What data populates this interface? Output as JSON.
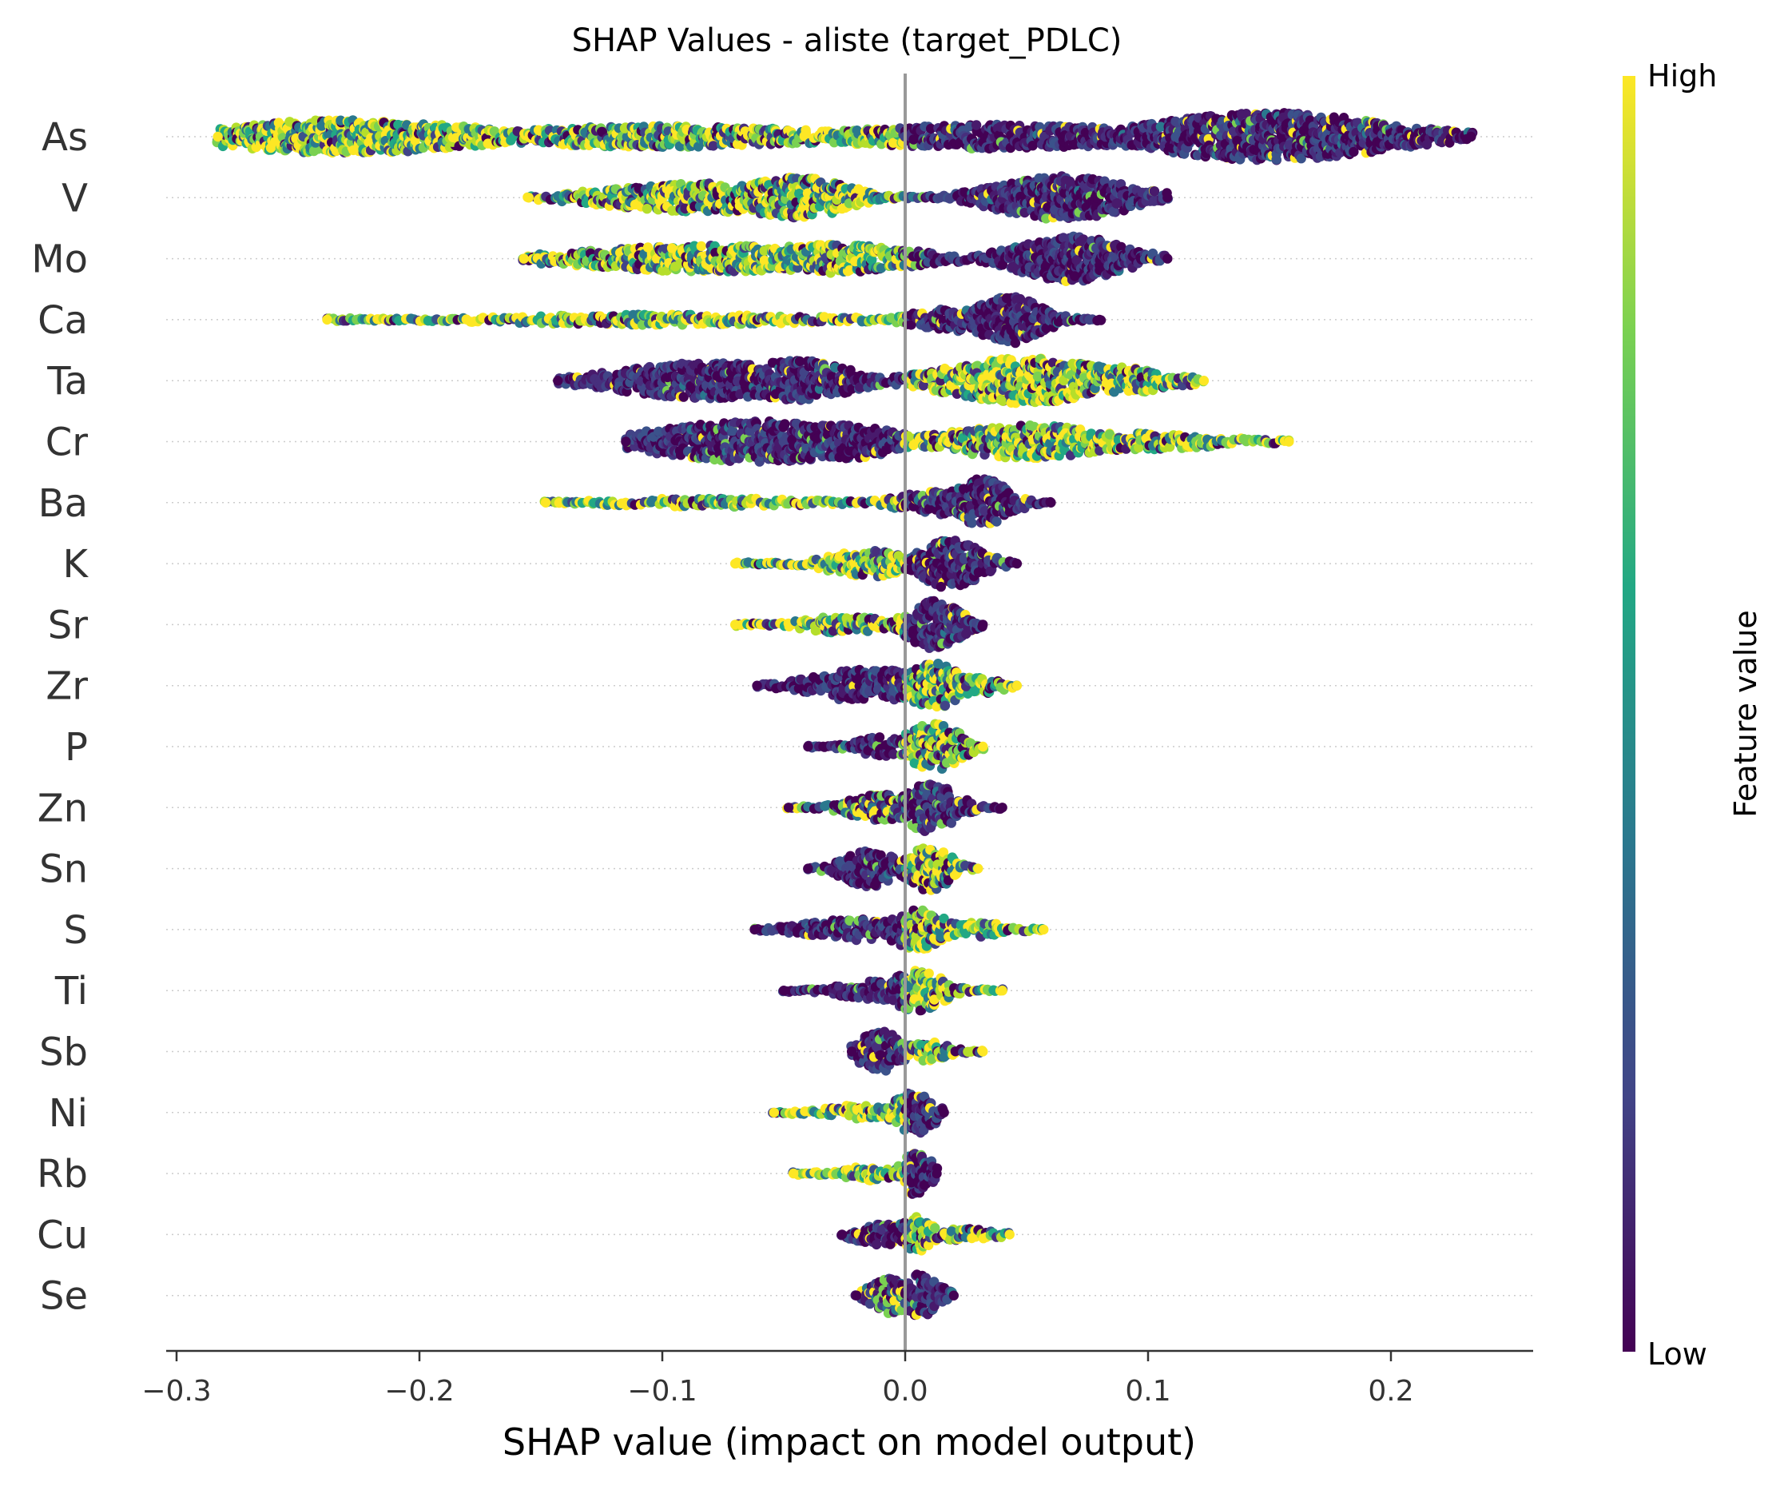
{
  "chart_data": {
    "type": "scatter",
    "subtype": "shap-beeswarm",
    "title": "SHAP Values - aliste (target_PDLC)",
    "xlabel": "SHAP value (impact on model output)",
    "ylabel": "",
    "xlim": [
      -0.305,
      0.258
    ],
    "xticks": [
      -0.3,
      -0.2,
      -0.1,
      0.0,
      0.1,
      0.2
    ],
    "xtick_labels": [
      "−0.3",
      "−0.2",
      "−0.1",
      "0.0",
      "0.1",
      "0.2"
    ],
    "zero_line": 0.0,
    "grid": false,
    "colorbar": {
      "label": "Feature value",
      "high_label": "High",
      "low_label": "Low",
      "colormap": "viridis",
      "colors": [
        "#440154",
        "#414487",
        "#2a788e",
        "#22a884",
        "#7ad151",
        "#fde725"
      ]
    },
    "features": [
      {
        "name": "As",
        "min": -0.283,
        "max": 0.233,
        "neg_color": "high",
        "pos_color": "low",
        "lobes": [
          {
            "c": -0.23,
            "w": 0.05,
            "h": 0.7
          },
          {
            "c": -0.1,
            "w": 0.06,
            "h": 0.45
          },
          {
            "c": 0.04,
            "w": 0.06,
            "h": 0.5
          },
          {
            "c": 0.15,
            "w": 0.045,
            "h": 1.0
          }
        ]
      },
      {
        "name": "V",
        "min": -0.155,
        "max": 0.108,
        "neg_color": "high",
        "pos_color": "low",
        "lobes": [
          {
            "c": -0.08,
            "w": 0.04,
            "h": 0.6
          },
          {
            "c": -0.045,
            "w": 0.02,
            "h": 0.85
          },
          {
            "c": 0.065,
            "w": 0.025,
            "h": 0.9
          }
        ]
      },
      {
        "name": "Mo",
        "min": -0.157,
        "max": 0.108,
        "neg_color": "high",
        "pos_color": "low",
        "lobes": [
          {
            "c": -0.08,
            "w": 0.05,
            "h": 0.55
          },
          {
            "c": -0.03,
            "w": 0.03,
            "h": 0.6
          },
          {
            "c": 0.068,
            "w": 0.02,
            "h": 0.95
          }
        ]
      },
      {
        "name": "Ca",
        "min": -0.238,
        "max": 0.08,
        "neg_color": "high",
        "pos_color": "low",
        "lobes": [
          {
            "c": -0.1,
            "w": 0.06,
            "h": 0.22
          },
          {
            "c": 0.02,
            "w": 0.015,
            "h": 0.5
          },
          {
            "c": 0.043,
            "w": 0.012,
            "h": 1.0
          }
        ]
      },
      {
        "name": "Ta",
        "min": -0.143,
        "max": 0.123,
        "neg_color": "low",
        "pos_color": "high",
        "lobes": [
          {
            "c": -0.08,
            "w": 0.035,
            "h": 0.75
          },
          {
            "c": -0.045,
            "w": 0.02,
            "h": 0.85
          },
          {
            "c": 0.05,
            "w": 0.03,
            "h": 0.95
          },
          {
            "c": 0.08,
            "w": 0.025,
            "h": 0.6
          }
        ]
      },
      {
        "name": "Cr",
        "min": -0.115,
        "max": 0.158,
        "neg_color": "low",
        "pos_color": "high",
        "lobes": [
          {
            "c": -0.06,
            "w": 0.04,
            "h": 0.85
          },
          {
            "c": -0.025,
            "w": 0.02,
            "h": 0.7
          },
          {
            "c": 0.05,
            "w": 0.03,
            "h": 0.7
          },
          {
            "c": 0.09,
            "w": 0.035,
            "h": 0.35
          }
        ]
      },
      {
        "name": "Ba",
        "min": -0.148,
        "max": 0.06,
        "neg_color": "high",
        "pos_color": "low",
        "lobes": [
          {
            "c": -0.08,
            "w": 0.04,
            "h": 0.18
          },
          {
            "c": 0.015,
            "w": 0.015,
            "h": 0.5
          },
          {
            "c": 0.032,
            "w": 0.01,
            "h": 1.0
          }
        ]
      },
      {
        "name": "K",
        "min": -0.07,
        "max": 0.046,
        "neg_color": "high",
        "pos_color": "low",
        "lobes": [
          {
            "c": -0.015,
            "w": 0.015,
            "h": 0.55
          },
          {
            "c": 0.018,
            "w": 0.012,
            "h": 1.0
          }
        ]
      },
      {
        "name": "Sr",
        "min": -0.07,
        "max": 0.032,
        "neg_color": "high",
        "pos_color": "low",
        "lobes": [
          {
            "c": -0.025,
            "w": 0.015,
            "h": 0.35
          },
          {
            "c": 0.012,
            "w": 0.01,
            "h": 1.0
          }
        ]
      },
      {
        "name": "Zr",
        "min": -0.061,
        "max": 0.046,
        "neg_color": "low",
        "pos_color": "high",
        "lobes": [
          {
            "c": -0.015,
            "w": 0.02,
            "h": 0.7
          },
          {
            "c": 0.012,
            "w": 0.01,
            "h": 0.95
          },
          {
            "c": 0.03,
            "w": 0.01,
            "h": 0.35
          }
        ]
      },
      {
        "name": "P",
        "min": -0.04,
        "max": 0.032,
        "neg_color": "low",
        "pos_color": "high",
        "lobes": [
          {
            "c": -0.01,
            "w": 0.01,
            "h": 0.4
          },
          {
            "c": 0.012,
            "w": 0.01,
            "h": 1.0
          }
        ]
      },
      {
        "name": "Zn",
        "min": -0.048,
        "max": 0.04,
        "neg_color": "mixed",
        "pos_color": "low",
        "lobes": [
          {
            "c": -0.01,
            "w": 0.012,
            "h": 0.55
          },
          {
            "c": 0.01,
            "w": 0.01,
            "h": 1.0
          }
        ]
      },
      {
        "name": "Sn",
        "min": -0.04,
        "max": 0.03,
        "neg_color": "low",
        "pos_color": "high",
        "lobes": [
          {
            "c": -0.015,
            "w": 0.01,
            "h": 0.75
          },
          {
            "c": 0.01,
            "w": 0.008,
            "h": 0.9
          }
        ]
      },
      {
        "name": "S",
        "min": -0.062,
        "max": 0.057,
        "neg_color": "low",
        "pos_color": "high",
        "lobes": [
          {
            "c": -0.02,
            "w": 0.02,
            "h": 0.45
          },
          {
            "c": 0.005,
            "w": 0.01,
            "h": 0.85
          },
          {
            "c": 0.03,
            "w": 0.012,
            "h": 0.3
          }
        ]
      },
      {
        "name": "Ti",
        "min": -0.05,
        "max": 0.04,
        "neg_color": "low",
        "pos_color": "high",
        "lobes": [
          {
            "c": -0.01,
            "w": 0.015,
            "h": 0.4
          },
          {
            "c": 0.005,
            "w": 0.01,
            "h": 0.85
          }
        ]
      },
      {
        "name": "Sb",
        "min": -0.022,
        "max": 0.032,
        "neg_color": "low",
        "pos_color": "high",
        "lobes": [
          {
            "c": -0.01,
            "w": 0.008,
            "h": 0.85
          },
          {
            "c": 0.01,
            "w": 0.008,
            "h": 0.4
          }
        ]
      },
      {
        "name": "Ni",
        "min": -0.054,
        "max": 0.016,
        "neg_color": "high",
        "pos_color": "low",
        "lobes": [
          {
            "c": -0.02,
            "w": 0.012,
            "h": 0.3
          },
          {
            "c": 0.004,
            "w": 0.007,
            "h": 0.9
          }
        ]
      },
      {
        "name": "Rb",
        "min": -0.046,
        "max": 0.013,
        "neg_color": "high",
        "pos_color": "low",
        "lobes": [
          {
            "c": -0.015,
            "w": 0.01,
            "h": 0.3
          },
          {
            "c": 0.005,
            "w": 0.006,
            "h": 0.9
          }
        ]
      },
      {
        "name": "Cu",
        "min": -0.026,
        "max": 0.043,
        "neg_color": "low",
        "pos_color": "high",
        "lobes": [
          {
            "c": -0.01,
            "w": 0.01,
            "h": 0.45
          },
          {
            "c": 0.004,
            "w": 0.006,
            "h": 0.75
          },
          {
            "c": 0.025,
            "w": 0.012,
            "h": 0.25
          }
        ]
      },
      {
        "name": "Se",
        "min": -0.02,
        "max": 0.02,
        "neg_color": "mixed",
        "pos_color": "low",
        "lobes": [
          {
            "c": -0.006,
            "w": 0.007,
            "h": 0.75
          },
          {
            "c": 0.006,
            "w": 0.007,
            "h": 0.9
          }
        ]
      }
    ]
  }
}
